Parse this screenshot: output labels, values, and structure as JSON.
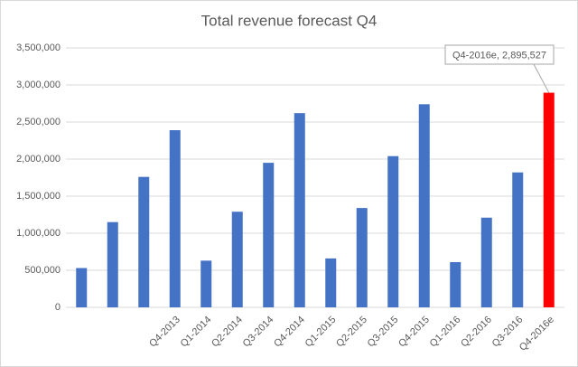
{
  "chart_data": {
    "type": "bar",
    "title": "Total revenue forecast Q4",
    "categories": [
      null,
      null,
      null,
      "Q4-2013",
      "Q1-2014",
      "Q2-2014",
      "Q3-2014",
      "Q4-2014",
      "Q1-2015",
      "Q2-2015",
      "Q3-2015",
      "Q4-2015",
      "Q1-2016",
      "Q2-2016",
      "Q3-2016",
      "Q4-2016e"
    ],
    "values": [
      530000,
      1150000,
      1760000,
      2390000,
      630000,
      1290000,
      1950000,
      2620000,
      660000,
      1340000,
      2040000,
      2740000,
      610000,
      1210000,
      1820000,
      2895527
    ],
    "colors": [
      "#4472c4",
      "#4472c4",
      "#4472c4",
      "#4472c4",
      "#4472c4",
      "#4472c4",
      "#4472c4",
      "#4472c4",
      "#4472c4",
      "#4472c4",
      "#4472c4",
      "#4472c4",
      "#4472c4",
      "#4472c4",
      "#4472c4",
      "#ff0000"
    ],
    "annotation": "Q4-2016e, 2,895,527",
    "ylim": [
      0,
      3500000
    ],
    "yticks": [
      0,
      {
        "value": 500000,
        "label": "500,000"
      },
      {
        "value": 1000000,
        "label": "1,000,000"
      },
      {
        "value": 1500000,
        "label": "1,500,000"
      },
      {
        "value": 2000000,
        "label": "2,000,000"
      },
      {
        "value": 2500000,
        "label": "2,500,000"
      },
      {
        "value": 3000000,
        "label": "3,000,000"
      },
      {
        "value": 3500000,
        "label": "3,500,000"
      }
    ],
    "grid": true
  }
}
